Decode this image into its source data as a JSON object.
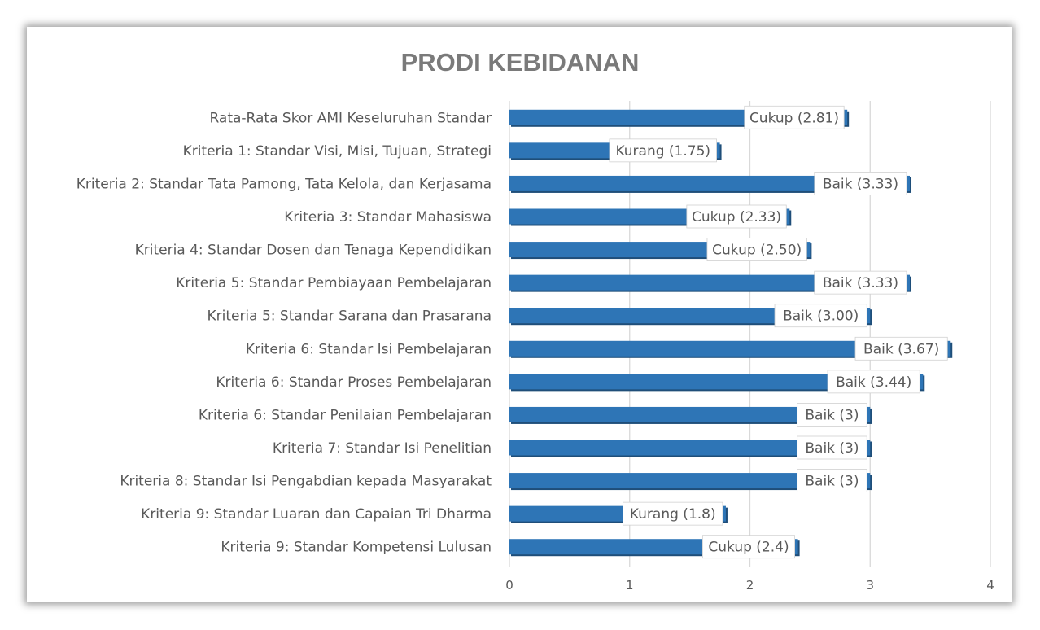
{
  "chart_data": {
    "type": "bar",
    "orientation": "horizontal",
    "title": "PRODI KEBIDANAN",
    "xlabel": "",
    "ylabel": "",
    "xlim": [
      0,
      4
    ],
    "ticks": [
      "0",
      "1",
      "2",
      "3",
      "4"
    ],
    "grid": true,
    "legend": "none",
    "bar_color": "#2e75b6",
    "categories": [
      "Rata-Rata Skor AMI Keseluruhan Standar",
      "Kriteria 1: Standar Visi, Misi, Tujuan, Strategi",
      "Kriteria 2: Standar Tata Pamong, Tata Kelola, dan Kerjasama",
      "Kriteria 3: Standar Mahasiswa",
      "Kriteria 4: Standar Dosen dan Tenaga Kependidikan",
      "Kriteria 5: Standar Pembiayaan Pembelajaran",
      "Kriteria 5: Standar Sarana dan Prasarana",
      "Kriteria 6: Standar Isi Pembelajaran",
      "Kriteria 6: Standar Proses Pembelajaran",
      "Kriteria 6: Standar Penilaian Pembelajaran",
      "Kriteria 7: Standar Isi Penelitian",
      "Kriteria 8: Standar Isi Pengabdian kepada Masyarakat",
      "Kriteria 9: Standar Luaran dan Capaian Tri Dharma",
      "Kriteria 9: Standar Kompetensi Lulusan"
    ],
    "values": [
      2.81,
      1.75,
      3.33,
      2.33,
      2.5,
      3.33,
      3.0,
      3.67,
      3.44,
      3,
      3,
      3,
      1.8,
      2.4
    ],
    "data_labels": [
      "Cukup (2.81)",
      "Kurang (1.75)",
      "Baik (3.33)",
      "Cukup (2.33)",
      "Cukup (2.50)",
      "Baik (3.33)",
      "Baik (3.00)",
      "Baik (3.67)",
      "Baik (3.44)",
      "Baik (3)",
      "Baik (3)",
      "Baik (3)",
      "Kurang (1.8)",
      "Cukup (2.4)"
    ]
  }
}
